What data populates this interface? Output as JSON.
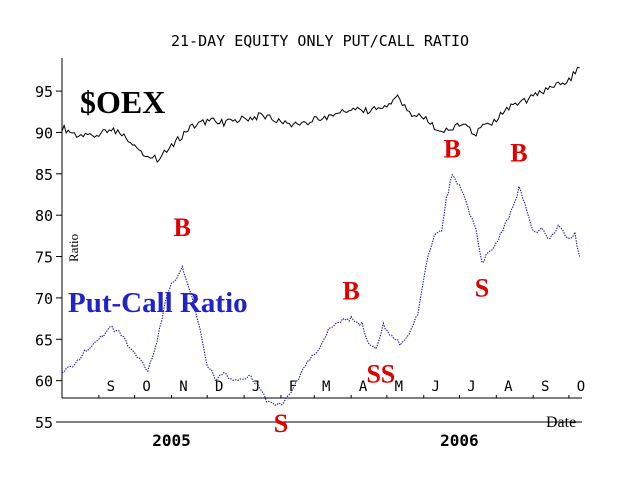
{
  "chart_data": {
    "type": "line",
    "title": "21-DAY EQUITY ONLY PUT/CALL RATIO",
    "ylabel": "Ratio",
    "xlabel": "Date",
    "ylim": [
      55,
      99
    ],
    "yticks": [
      55,
      60,
      65,
      70,
      75,
      80,
      85,
      90,
      95
    ],
    "months": [
      {
        "label": "S",
        "date": "2005-09-01"
      },
      {
        "label": "O",
        "date": "2005-10-01"
      },
      {
        "label": "N",
        "date": "2005-11-01"
      },
      {
        "label": "D",
        "date": "2005-12-01"
      },
      {
        "label": "J",
        "date": "2006-01-01"
      },
      {
        "label": "F",
        "date": "2006-02-01"
      },
      {
        "label": "M",
        "date": "2006-03-01"
      },
      {
        "label": "A",
        "date": "2006-04-01"
      },
      {
        "label": "M",
        "date": "2006-05-01"
      },
      {
        "label": "J",
        "date": "2006-06-01"
      },
      {
        "label": "J",
        "date": "2006-07-01"
      },
      {
        "label": "A",
        "date": "2006-08-01"
      },
      {
        "label": "S",
        "date": "2006-09-01"
      },
      {
        "label": "O",
        "date": "2006-10-01"
      }
    ],
    "years": [
      {
        "label": "2005",
        "date": "2005-11-01"
      },
      {
        "label": "2006",
        "date": "2006-07-01"
      }
    ],
    "series": [
      {
        "name": "$OEX",
        "color": "#000000",
        "points": [
          [
            "2005-08-01",
            90.6
          ],
          [
            "2005-08-15",
            89.6
          ],
          [
            "2005-09-01",
            89.8
          ],
          [
            "2005-09-15",
            90.2
          ],
          [
            "2005-10-01",
            88.6
          ],
          [
            "2005-10-10",
            87.2
          ],
          [
            "2005-10-20",
            86.8
          ],
          [
            "2005-11-01",
            88.2
          ],
          [
            "2005-11-15",
            90.5
          ],
          [
            "2005-12-01",
            91.4
          ],
          [
            "2005-12-15",
            91.2
          ],
          [
            "2006-01-01",
            91.6
          ],
          [
            "2006-01-15",
            92.0
          ],
          [
            "2006-02-01",
            91.3
          ],
          [
            "2006-02-15",
            90.9
          ],
          [
            "2006-03-01",
            91.5
          ],
          [
            "2006-03-15",
            92.1
          ],
          [
            "2006-04-01",
            92.8
          ],
          [
            "2006-04-15",
            92.5
          ],
          [
            "2006-05-01",
            93.2
          ],
          [
            "2006-05-10",
            94.2
          ],
          [
            "2006-05-20",
            92.3
          ],
          [
            "2006-06-01",
            91.8
          ],
          [
            "2006-06-10",
            90.6
          ],
          [
            "2006-06-20",
            90.2
          ],
          [
            "2006-07-01",
            90.9
          ],
          [
            "2006-07-15",
            90.0
          ],
          [
            "2006-08-01",
            91.6
          ],
          [
            "2006-08-15",
            93.3
          ],
          [
            "2006-09-01",
            94.3
          ],
          [
            "2006-09-15",
            95.2
          ],
          [
            "2006-10-01",
            96.4
          ],
          [
            "2006-10-10",
            97.8
          ]
        ]
      },
      {
        "name": "Put-Call Ratio",
        "color": "#1a1aa6",
        "points": [
          [
            "2005-08-01",
            61.0
          ],
          [
            "2005-08-10",
            61.8
          ],
          [
            "2005-08-20",
            63.5
          ],
          [
            "2005-09-01",
            64.8
          ],
          [
            "2005-09-10",
            66.6
          ],
          [
            "2005-09-20",
            65.6
          ],
          [
            "2005-09-27",
            64.0
          ],
          [
            "2005-10-05",
            62.6
          ],
          [
            "2005-10-12",
            61.2
          ],
          [
            "2005-10-20",
            64.8
          ],
          [
            "2005-10-28",
            70.5
          ],
          [
            "2005-11-05",
            72.5
          ],
          [
            "2005-11-10",
            73.8
          ],
          [
            "2005-11-18",
            70.5
          ],
          [
            "2005-11-25",
            66.0
          ],
          [
            "2005-12-01",
            62.0
          ],
          [
            "2005-12-08",
            60.2
          ],
          [
            "2005-12-15",
            60.8
          ],
          [
            "2005-12-25",
            59.8
          ],
          [
            "2006-01-05",
            60.6
          ],
          [
            "2006-01-12",
            59.5
          ],
          [
            "2006-01-20",
            57.5
          ],
          [
            "2006-01-27",
            57.0
          ],
          [
            "2006-02-03",
            57.3
          ],
          [
            "2006-02-10",
            58.5
          ],
          [
            "2006-02-18",
            61.0
          ],
          [
            "2006-02-25",
            62.5
          ],
          [
            "2006-03-05",
            64.0
          ],
          [
            "2006-03-15",
            66.5
          ],
          [
            "2006-03-25",
            67.3
          ],
          [
            "2006-04-01",
            67.5
          ],
          [
            "2006-04-10",
            66.8
          ],
          [
            "2006-04-16",
            64.5
          ],
          [
            "2006-04-22",
            63.8
          ],
          [
            "2006-04-28",
            66.8
          ],
          [
            "2006-05-05",
            65.5
          ],
          [
            "2006-05-12",
            64.5
          ],
          [
            "2006-05-20",
            65.8
          ],
          [
            "2006-05-27",
            68.0
          ],
          [
            "2006-06-03",
            74.0
          ],
          [
            "2006-06-10",
            77.5
          ],
          [
            "2006-06-16",
            78.2
          ],
          [
            "2006-06-20",
            82.0
          ],
          [
            "2006-06-25",
            84.8
          ],
          [
            "2006-07-01",
            83.5
          ],
          [
            "2006-07-08",
            81.0
          ],
          [
            "2006-07-15",
            78.0
          ],
          [
            "2006-07-20",
            74.2
          ],
          [
            "2006-07-25",
            75.5
          ],
          [
            "2006-08-01",
            76.5
          ],
          [
            "2006-08-08",
            78.8
          ],
          [
            "2006-08-15",
            80.8
          ],
          [
            "2006-08-20",
            83.2
          ],
          [
            "2006-08-25",
            81.5
          ],
          [
            "2006-09-01",
            78.0
          ],
          [
            "2006-09-08",
            78.2
          ],
          [
            "2006-09-15",
            77.2
          ],
          [
            "2006-09-22",
            78.8
          ],
          [
            "2006-09-30",
            77.0
          ],
          [
            "2006-10-06",
            77.8
          ],
          [
            "2006-10-10",
            75.0
          ]
        ]
      }
    ],
    "labels": [
      {
        "text": "$OEX",
        "color": "#000000"
      },
      {
        "text": "Put-Call Ratio",
        "color": "#2222cc"
      }
    ],
    "signals": [
      {
        "text": "B",
        "date": "2005-11-10",
        "value": 77.5
      },
      {
        "text": "S",
        "date": "2006-02-01",
        "value": 53.8
      },
      {
        "text": "B",
        "date": "2006-04-01",
        "value": 69.8
      },
      {
        "text": "S",
        "date": "2006-04-20",
        "value": 59.8
      },
      {
        "text": "S",
        "date": "2006-05-02",
        "value": 59.8
      },
      {
        "text": "B",
        "date": "2006-06-25",
        "value": 87.0
      },
      {
        "text": "S",
        "date": "2006-07-20",
        "value": 70.2
      },
      {
        "text": "B",
        "date": "2006-08-20",
        "value": 86.5
      }
    ],
    "signal_color": "#e00000",
    "grid": false
  }
}
